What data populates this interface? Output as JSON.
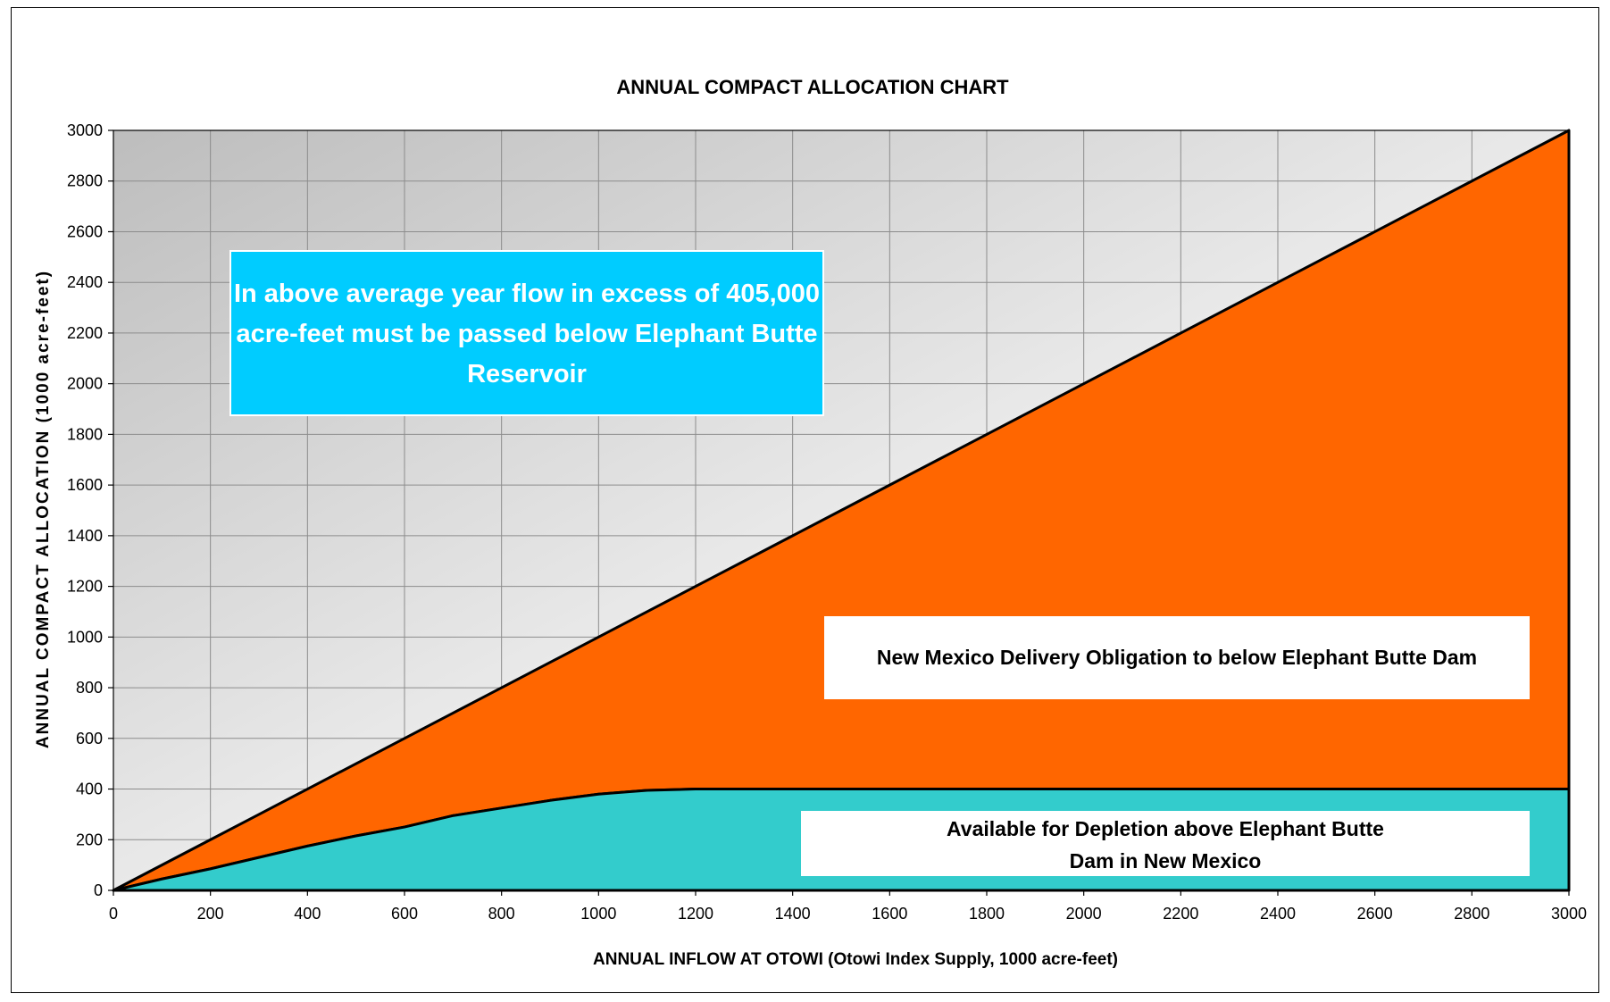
{
  "chart_data": {
    "type": "area",
    "title": "ANNUAL COMPACT ALLOCATION CHART",
    "xlabel": "ANNUAL INFLOW AT OTOWI (Otowi Index Supply, 1000 acre-feet)",
    "ylabel": "ANNUAL COMPACT ALLOCATION (1000 acre-feet)",
    "xlim": [
      0,
      3000
    ],
    "ylim": [
      0,
      3000
    ],
    "x_ticks": [
      0,
      200,
      400,
      600,
      800,
      1000,
      1200,
      1400,
      1600,
      1800,
      2000,
      2200,
      2400,
      2600,
      2800,
      3000
    ],
    "y_ticks": [
      0,
      200,
      400,
      600,
      800,
      1000,
      1200,
      1400,
      1600,
      1800,
      2000,
      2200,
      2400,
      2600,
      2800,
      3000
    ],
    "grid": true,
    "series": [
      {
        "color": "#ff6600",
        "x": [
          0,
          100,
          200,
          300,
          400,
          500,
          600,
          700,
          800,
          900,
          1000,
          1100,
          1200,
          1300,
          1400,
          1500,
          1600,
          1700,
          1800,
          1900,
          2000,
          2100,
          2200,
          2300,
          2400,
          2500,
          2600,
          2700,
          2800,
          2900,
          3000
        ],
        "y": [
          0,
          100,
          200,
          300,
          400,
          500,
          600,
          700,
          800,
          900,
          1000,
          1100,
          1200,
          1300,
          1400,
          1500,
          1600,
          1700,
          1800,
          1900,
          2000,
          2100,
          2200,
          2300,
          2400,
          2500,
          2600,
          2700,
          2800,
          2900,
          3000
        ]
      },
      {
        "color": "#33cccc",
        "x": [
          0,
          100,
          200,
          300,
          400,
          500,
          600,
          700,
          800,
          900,
          1000,
          1100,
          1200,
          1300,
          1400,
          1500,
          1600,
          1700,
          1800,
          1900,
          2000,
          2100,
          2200,
          2300,
          2400,
          2500,
          2600,
          2700,
          2800,
          2900,
          3000
        ],
        "y": [
          0,
          45,
          85,
          130,
          175,
          215,
          250,
          295,
          325,
          355,
          380,
          395,
          400,
          400,
          400,
          400,
          400,
          400,
          400,
          400,
          400,
          400,
          400,
          400,
          400,
          400,
          400,
          400,
          400,
          400,
          400
        ]
      }
    ],
    "annotations": [
      {
        "lines": [
          "In above average year flow in excess of 405,000",
          "acre-feet must be passed below Elephant Butte",
          "Reservoir"
        ],
        "background": "#00ccff",
        "text_color": "#ffffff"
      },
      {
        "lines": [
          "New Mexico Delivery Obligation to below Elephant Butte Dam"
        ],
        "background": "#ffffff",
        "text_color": "#000000"
      },
      {
        "lines": [
          "Available for Depletion above Elephant Butte",
          "Dam in New Mexico"
        ],
        "background": "#ffffff",
        "text_color": "#000000"
      }
    ],
    "colors": {
      "background_gradient_start": "#bdbdbd",
      "background_gradient_end": "#ffffff",
      "grid": "#8c8c8c"
    }
  }
}
